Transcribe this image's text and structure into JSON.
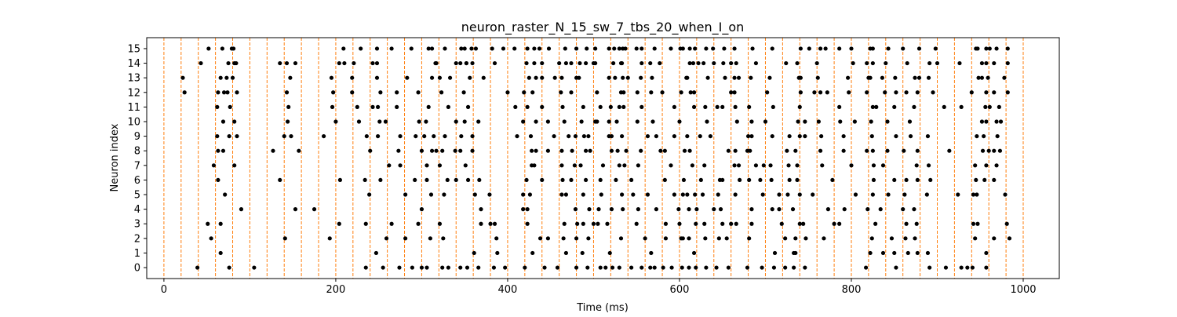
{
  "chart_data": {
    "type": "scatter",
    "title": "neuron_raster_N_15_sw_7_tbs_20_when_I_on",
    "xlabel": "Time (ms)",
    "ylabel": "Neuron index",
    "xlim": [
      -20,
      1042
    ],
    "ylim": [
      -0.75,
      15.75
    ],
    "xticks": [
      0,
      200,
      400,
      600,
      800,
      1000
    ],
    "yticks": [
      0,
      1,
      2,
      3,
      4,
      5,
      6,
      7,
      8,
      9,
      10,
      11,
      12,
      13,
      14,
      15
    ],
    "grid": false,
    "marker_color": "#000000",
    "vline_color": "#ff7f0e",
    "vlines_x": [
      0,
      20,
      40,
      60,
      80,
      100,
      120,
      140,
      160,
      180,
      200,
      220,
      240,
      260,
      280,
      300,
      320,
      340,
      360,
      380,
      400,
      420,
      440,
      460,
      480,
      500,
      520,
      540,
      560,
      580,
      600,
      620,
      640,
      660,
      680,
      700,
      720,
      740,
      760,
      780,
      800,
      820,
      840,
      860,
      880,
      900,
      920,
      940,
      960,
      980,
      1000
    ],
    "spikes": [
      {
        "neuron": 15,
        "times": [
          52,
          68,
          79,
          81,
          209,
          229,
          248,
          265,
          288,
          312,
          308,
          327,
          346,
          350,
          358,
          363,
          382,
          395,
          408,
          423,
          431,
          437,
          448,
          467,
          480,
          492,
          502,
          518,
          524,
          530,
          534,
          537,
          550,
          556,
          571,
          590,
          601,
          604,
          612,
          618,
          631,
          639,
          652,
          664,
          685,
          708,
          741,
          751,
          764,
          770,
          786,
          800,
          822,
          825,
          843,
          860,
          879,
          898,
          945,
          947,
          957,
          961,
          969,
          982
        ]
      },
      {
        "neuron": 14,
        "times": [
          43,
          75,
          82,
          84,
          135,
          143,
          153,
          204,
          210,
          221,
          243,
          248,
          316,
          317,
          340,
          345,
          352,
          352,
          359,
          385,
          422,
          431,
          440,
          460,
          468,
          474,
          484,
          491,
          502,
          500,
          523,
          533,
          532,
          556,
          566,
          577,
          612,
          616,
          622,
          628,
          640,
          651,
          660,
          666,
          689,
          724,
          737,
          760,
          802,
          818,
          825,
          840,
          865,
          891,
          900,
          926,
          952,
          957,
          966,
          982
        ]
      },
      {
        "neuron": 13,
        "times": [
          22,
          66,
          73,
          80,
          147,
          195,
          219,
          248,
          283,
          312,
          321,
          333,
          356,
          372,
          425,
          433,
          440,
          455,
          463,
          480,
          483,
          518,
          525,
          534,
          540,
          555,
          568,
          609,
          608,
          633,
          653,
          664,
          669,
          683,
          705,
          739,
          741,
          761,
          796,
          820,
          822,
          836,
          851,
          874,
          879,
          890,
          948,
          952,
          959,
          978
        ]
      },
      {
        "neuron": 12,
        "times": [
          24,
          63,
          70,
          74,
          85,
          143,
          197,
          219,
          252,
          271,
          296,
          323,
          349,
          400,
          419,
          429,
          462,
          474,
          504,
          532,
          535,
          551,
          567,
          580,
          602,
          613,
          617,
          660,
          664,
          702,
          741,
          757,
          764,
          772,
          797,
          818,
          839,
          852,
          864,
          877,
          895,
          940,
          957,
          966,
          982
        ]
      },
      {
        "neuron": 11,
        "times": [
          62,
          77,
          145,
          196,
          225,
          243,
          249,
          271,
          308,
          331,
          354,
          409,
          423,
          440,
          464,
          488,
          508,
          520,
          530,
          535,
          556,
          594,
          617,
          630,
          644,
          650,
          665,
          681,
          709,
          740,
          786,
          825,
          829,
          850,
          873,
          908,
          928,
          956,
          961,
          972
        ]
      },
      {
        "neuron": 10,
        "times": [
          69,
          82,
          144,
          200,
          227,
          251,
          258,
          297,
          305,
          340,
          350,
          366,
          418,
          433,
          447,
          466,
          486,
          502,
          504,
          518,
          527,
          551,
          569,
          600,
          632,
          667,
          684,
          700,
          738,
          746,
          762,
          787,
          804,
          823,
          842,
          868,
          952,
          957,
          969,
          974
        ]
      },
      {
        "neuron": 9,
        "times": [
          62,
          76,
          85,
          140,
          148,
          186,
          236,
          249,
          275,
          293,
          303,
          314,
          327,
          346,
          359,
          411,
          427,
          454,
          471,
          479,
          489,
          494,
          518,
          521,
          533,
          563,
          573,
          594,
          609,
          624,
          636,
          680,
          684,
          708,
          728,
          740,
          746,
          765,
          791,
          824,
          852,
          869,
          889,
          946,
          954,
          970
        ]
      },
      {
        "neuron": 8,
        "times": [
          63,
          69,
          127,
          157,
          240,
          273,
          300,
          312,
          317,
          324,
          339,
          345,
          359,
          428,
          433,
          447,
          463,
          475,
          491,
          496,
          521,
          528,
          538,
          555,
          578,
          583,
          606,
          612,
          657,
          665,
          679,
          682,
          725,
          735,
          764,
          791,
          818,
          825,
          842,
          861,
          877,
          914,
          953,
          960,
          966,
          973
        ]
      },
      {
        "neuron": 7,
        "times": [
          58,
          82,
          262,
          275,
          306,
          321,
          351,
          428,
          431,
          463,
          478,
          485,
          511,
          530,
          536,
          552,
          590,
          615,
          629,
          664,
          669,
          689,
          698,
          706,
          727,
          737,
          766,
          800,
          826,
          837,
          876,
          890,
          944,
          957,
          969
        ]
      },
      {
        "neuron": 6,
        "times": [
          63,
          135,
          205,
          234,
          252,
          292,
          306,
          330,
          340,
          354,
          367,
          422,
          440,
          464,
          474,
          491,
          508,
          526,
          544,
          583,
          605,
          625,
          647,
          650,
          670,
          681,
          694,
          707,
          728,
          737,
          778,
          826,
          850,
          864,
          877,
          892,
          945,
          955,
          966
        ]
      },
      {
        "neuron": 5,
        "times": [
          71,
          239,
          281,
          311,
          326,
          362,
          379,
          418,
          426,
          463,
          468,
          488,
          509,
          533,
          546,
          563,
          594,
          604,
          609,
          618,
          627,
          645,
          665,
          697,
          716,
          726,
          740,
          755,
          805,
          825,
          843,
          862,
          888,
          924,
          942,
          946,
          979
        ]
      },
      {
        "neuron": 4,
        "times": [
          90,
          153,
          175,
          300,
          369,
          418,
          423,
          479,
          495,
          506,
          521,
          534,
          552,
          573,
          599,
          611,
          620,
          640,
          648,
          684,
          708,
          716,
          732,
          773,
          792,
          819,
          834,
          860,
          873
        ]
      },
      {
        "neuron": 3,
        "times": [
          51,
          66,
          204,
          235,
          265,
          296,
          321,
          369,
          380,
          385,
          423,
          466,
          481,
          488,
          500,
          505,
          516,
          550,
          584,
          600,
          619,
          629,
          650,
          660,
          666,
          684,
          719,
          740,
          744,
          780,
          786,
          828,
          864,
          876,
          942,
          947,
          981
        ]
      },
      {
        "neuron": 2,
        "times": [
          55,
          141,
          193,
          259,
          281,
          310,
          325,
          387,
          438,
          447,
          465,
          480,
          494,
          532,
          560,
          584,
          602,
          604,
          611,
          630,
          646,
          655,
          681,
          723,
          735,
          747,
          768,
          824,
          847,
          863,
          874,
          944,
          966,
          984
        ]
      },
      {
        "neuron": 1,
        "times": [
          66,
          247,
          361,
          388,
          429,
          468,
          487,
          519,
          567,
          617,
          711,
          733,
          735,
          822,
          837,
          850,
          866,
          877,
          889,
          957
        ]
      },
      {
        "neuron": 0,
        "times": [
          39,
          76,
          105,
          235,
          255,
          274,
          289,
          300,
          306,
          324,
          331,
          345,
          353,
          366,
          384,
          397,
          420,
          443,
          458,
          480,
          493,
          508,
          514,
          522,
          530,
          544,
          556,
          566,
          571,
          581,
          591,
          603,
          611,
          619,
          631,
          643,
          657,
          679,
          696,
          710,
          723,
          733,
          746,
          817,
          852,
          891,
          910,
          928,
          935,
          941,
          957
        ]
      }
    ]
  }
}
